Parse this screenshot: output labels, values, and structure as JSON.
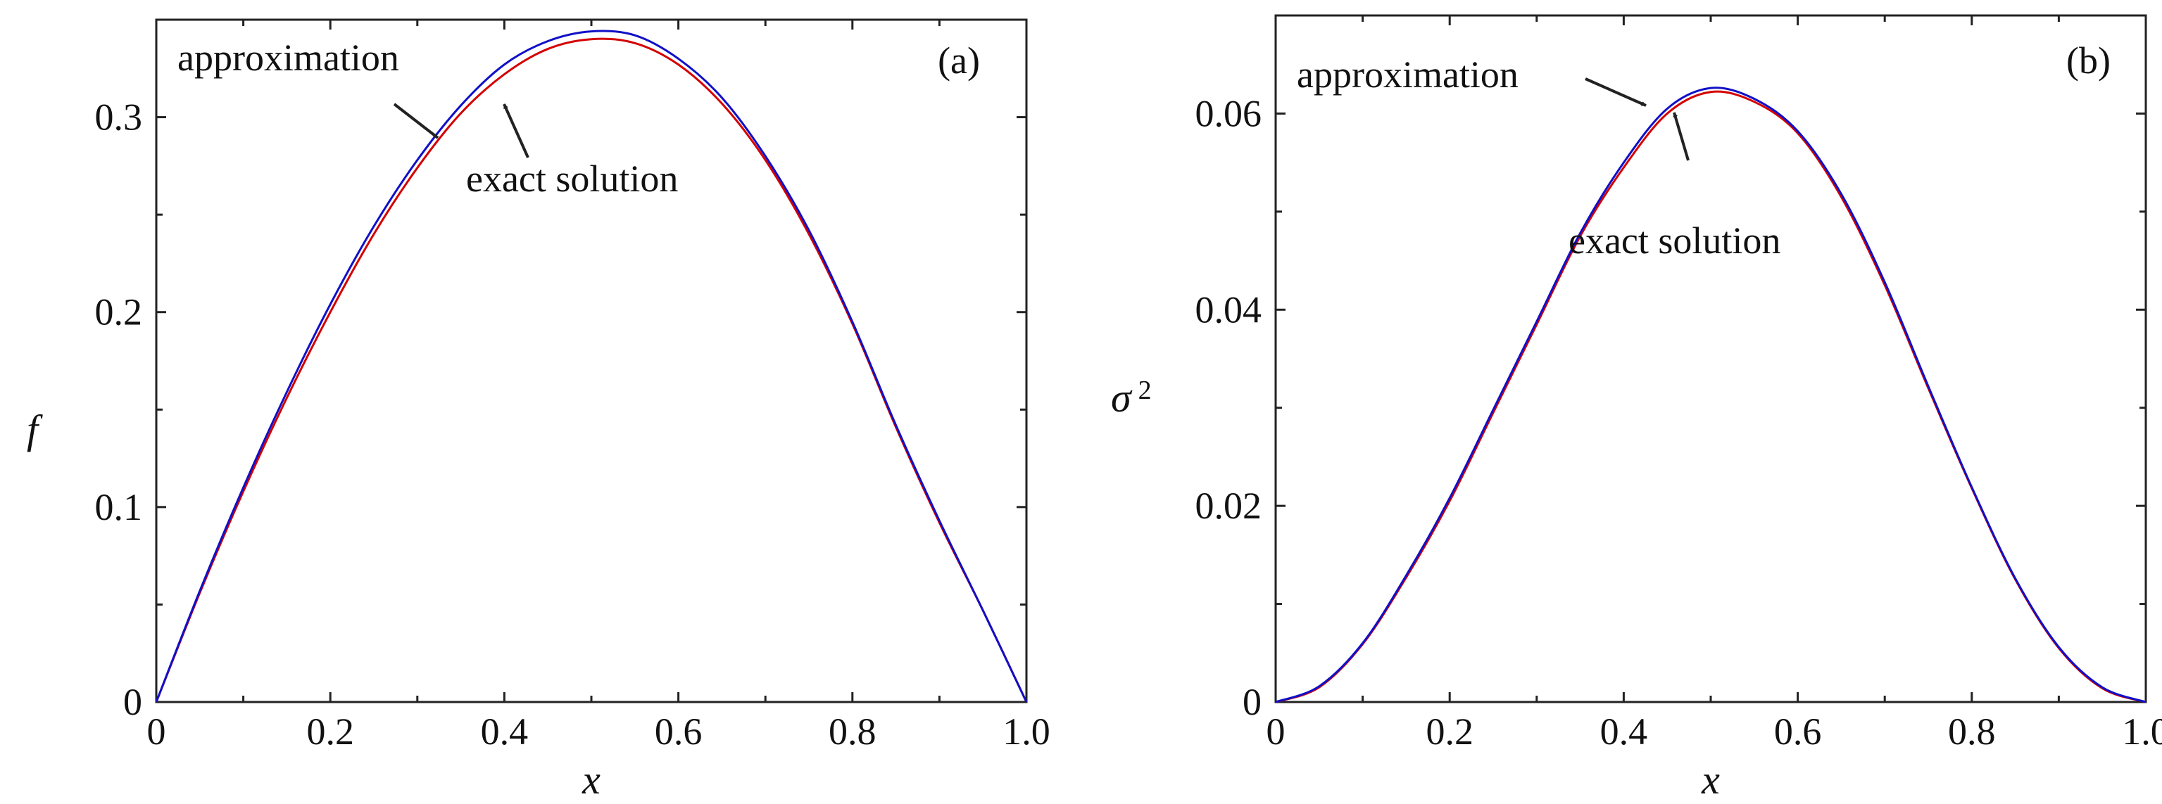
{
  "colors": {
    "exact": "#d40000",
    "approximation": "#1010c8",
    "axis": "#222222",
    "arrow": "#222222"
  },
  "chart_data": [
    {
      "type": "line",
      "panel": "(a)",
      "title": "",
      "xlabel": "x",
      "ylabel": "f",
      "xlim": [
        0,
        1
      ],
      "ylim": [
        0,
        0.35
      ],
      "xticks": [
        "0",
        "0.2",
        "0.4",
        "0.6",
        "0.8",
        "1.0"
      ],
      "yticks": [
        "0",
        "0.1",
        "0.2",
        "0.3"
      ],
      "grid": false,
      "annotations": [
        {
          "text": "approximation"
        },
        {
          "text": "exact solution"
        }
      ],
      "x": [
        0,
        0.05,
        0.1,
        0.15,
        0.2,
        0.25,
        0.3,
        0.35,
        0.4,
        0.45,
        0.5,
        0.55,
        0.6,
        0.65,
        0.7,
        0.75,
        0.8,
        0.85,
        0.9,
        0.95,
        1.0
      ],
      "series": [
        {
          "name": "exact solution",
          "values": [
            0,
            0.056,
            0.108,
            0.156,
            0.2,
            0.24,
            0.274,
            0.302,
            0.322,
            0.335,
            0.34,
            0.338,
            0.327,
            0.307,
            0.278,
            0.24,
            0.194,
            0.141,
            0.092,
            0.047,
            0
          ]
        },
        {
          "name": "approximation",
          "values": [
            0,
            0.057,
            0.11,
            0.159,
            0.204,
            0.244,
            0.278,
            0.306,
            0.327,
            0.339,
            0.344,
            0.342,
            0.33,
            0.31,
            0.28,
            0.242,
            0.195,
            0.142,
            0.093,
            0.047,
            0
          ]
        }
      ]
    },
    {
      "type": "line",
      "panel": "(b)",
      "title": "",
      "xlabel": "x",
      "ylabel": "σ",
      "ylabel_sup": "2",
      "xlim": [
        0,
        1
      ],
      "ylim": [
        0,
        0.07
      ],
      "xticks": [
        "0",
        "0.2",
        "0.4",
        "0.6",
        "0.8",
        "1.0"
      ],
      "yticks": [
        "0",
        "0.02",
        "0.04",
        "0.06"
      ],
      "grid": false,
      "annotations": [
        {
          "text": "approximation"
        },
        {
          "text": "exact solution"
        }
      ],
      "x": [
        0,
        0.05,
        0.1,
        0.15,
        0.2,
        0.25,
        0.3,
        0.35,
        0.4,
        0.45,
        0.5,
        0.55,
        0.6,
        0.65,
        0.7,
        0.75,
        0.8,
        0.85,
        0.9,
        0.95,
        1.0
      ],
      "series": [
        {
          "name": "exact solution",
          "values": [
            0,
            0.0015,
            0.0059,
            0.0127,
            0.0205,
            0.0295,
            0.0385,
            0.0475,
            0.0545,
            0.06,
            0.0622,
            0.0612,
            0.058,
            0.0515,
            0.0425,
            0.032,
            0.0218,
            0.0125,
            0.0055,
            0.0014,
            0
          ]
        },
        {
          "name": "approximation",
          "values": [
            0,
            0.0016,
            0.006,
            0.0129,
            0.0208,
            0.0298,
            0.0388,
            0.0478,
            0.055,
            0.0605,
            0.0626,
            0.0615,
            0.0582,
            0.0518,
            0.0428,
            0.0322,
            0.0219,
            0.0126,
            0.0056,
            0.0015,
            0
          ]
        }
      ]
    }
  ]
}
